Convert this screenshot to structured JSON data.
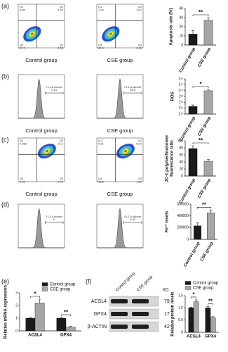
{
  "panel_labels": [
    "(a)",
    "(b)",
    "(c)",
    "(d)",
    "(e)",
    "(f)"
  ],
  "cytometry": [
    {
      "type": "dot",
      "quadrants": [
        "Q1",
        "Q2",
        "Q3",
        "Q4"
      ],
      "plots": [
        {
          "caption": "Control group",
          "gates": [
            "0.85",
            "8.76",
            "2.65",
            "87.7"
          ]
        },
        {
          "caption": "CSE group",
          "gates": [
            "1.94",
            "13.7",
            "2.69",
            "81.6"
          ]
        }
      ]
    },
    {
      "type": "histogram",
      "plots": [
        {
          "caption": "Control group",
          "gate": "FL1-A subset",
          "gate_value": "0.13"
        },
        {
          "caption": "CSE group",
          "gate": "FL1-A subset",
          "gate_value": "95.5"
        }
      ]
    },
    {
      "type": "dot",
      "quadrants": [
        "Q1",
        "Q2",
        "Q3",
        "Q4"
      ],
      "plots": [
        {
          "caption": "Control group",
          "gates": [
            "0.066",
            "91.2",
            "0.73",
            "8.03"
          ]
        },
        {
          "caption": "CSE group",
          "gates": [
            "0.31",
            "59.6",
            "1.52",
            "38.6"
          ]
        }
      ]
    },
    {
      "type": "histogram",
      "plots": [
        {
          "gate": "FL2-A subset",
          "gate_value": "0"
        },
        {
          "gate": "FL2-A subset",
          "gate_value": "9.63"
        }
      ]
    }
  ],
  "blot": {
    "lanes": [
      "Control group",
      "CSE group"
    ],
    "kd_header": "KD",
    "rows": [
      {
        "protein": "ACSL4",
        "kd": "79"
      },
      {
        "protein": "GPX4",
        "kd": "17"
      },
      {
        "protein": "β-ACTIN",
        "kd": "42"
      }
    ]
  },
  "chart_data": [
    {
      "type": "bar",
      "ylabel": "Apoptosis rate (%)",
      "categories": [
        "Control group",
        "CSE group"
      ],
      "values": [
        12,
        27
      ],
      "errors": [
        4,
        3
      ],
      "colors": [
        "#1a1a1a",
        "#a6a6a6"
      ],
      "ylim": [
        0,
        40
      ],
      "yticks": [
        0,
        10,
        20,
        30,
        40
      ],
      "annotation": "**"
    },
    {
      "type": "bar",
      "ylabel": "ROS",
      "log_scale": true,
      "categories": [
        "Control group",
        "CSE group"
      ],
      "values": [
        2500,
        16000
      ],
      "errors": [
        500,
        3000
      ],
      "colors": [
        "#1a1a1a",
        "#a6a6a6"
      ],
      "ylim": [
        1024,
        65536
      ],
      "yticks": [
        {
          "value": 1024,
          "label": "2¹⁰"
        },
        {
          "value": 2048,
          "label": "2¹¹"
        },
        {
          "value": 4096,
          "label": "2¹²"
        },
        {
          "value": 8192,
          "label": "2¹³"
        },
        {
          "value": 16384,
          "label": "2¹⁴"
        },
        {
          "value": 32768,
          "label": "2¹⁵"
        },
        {
          "value": 65536,
          "label": "2¹⁶"
        }
      ],
      "annotation": "*"
    },
    {
      "type": "bar",
      "ylabel": [
        "JC-1 polymer/monomer",
        "fluorescence ratio"
      ],
      "categories": [
        "Control group",
        "CSE group"
      ],
      "values": [
        78,
        42
      ],
      "errors": [
        8,
        5
      ],
      "colors": [
        "#1a1a1a",
        "#a6a6a6"
      ],
      "ylim": [
        0,
        100
      ],
      "yticks": [
        0,
        20,
        40,
        60,
        80,
        100
      ],
      "annotation": "**"
    },
    {
      "type": "bar",
      "ylabel": "Fe²⁺ levels",
      "categories": [
        "Control group",
        "CSE group"
      ],
      "values": [
        230000,
        450000
      ],
      "errors": [
        50000,
        50000
      ],
      "colors": [
        "#1a1a1a",
        "#a6a6a6"
      ],
      "ylim": [
        0,
        600000
      ],
      "yticks": [
        0,
        200000,
        400000,
        600000
      ],
      "annotation": "**"
    },
    {
      "type": "grouped-bar",
      "ylabel": "Relative mRNA expression",
      "categories": [
        "ACSL4",
        "GPX4"
      ],
      "series": [
        {
          "name": "Control group",
          "color": "#1a1a1a",
          "values": [
            1,
            1
          ],
          "errors": [
            0.05,
            0.05
          ]
        },
        {
          "name": "CSE group",
          "color": "#a6a6a6",
          "values": [
            2.2,
            0.3
          ],
          "errors": [
            0.3,
            0.05
          ]
        }
      ],
      "ylim": [
        0,
        3
      ],
      "yticks": [
        0,
        1,
        2,
        3
      ],
      "annotations": [
        "*",
        "**"
      ]
    },
    {
      "type": "grouped-bar",
      "ylabel": "Relative protein levels",
      "categories": [
        "ACSL4",
        "GPX4"
      ],
      "series": [
        {
          "name": "Control group",
          "color": "#1a1a1a",
          "values": [
            1,
            1
          ],
          "errors": [
            0.03,
            0.05
          ]
        },
        {
          "name": "CSE group",
          "color": "#a6a6a6",
          "values": [
            1.25,
            0.6
          ],
          "errors": [
            0.08,
            0.06
          ]
        }
      ],
      "ylim": [
        0,
        1.5
      ],
      "yticks": [
        0,
        0.5,
        {
          "value": 1,
          "label": "1.0"
        },
        1.5
      ],
      "annotations": [
        "*",
        "**"
      ]
    }
  ]
}
